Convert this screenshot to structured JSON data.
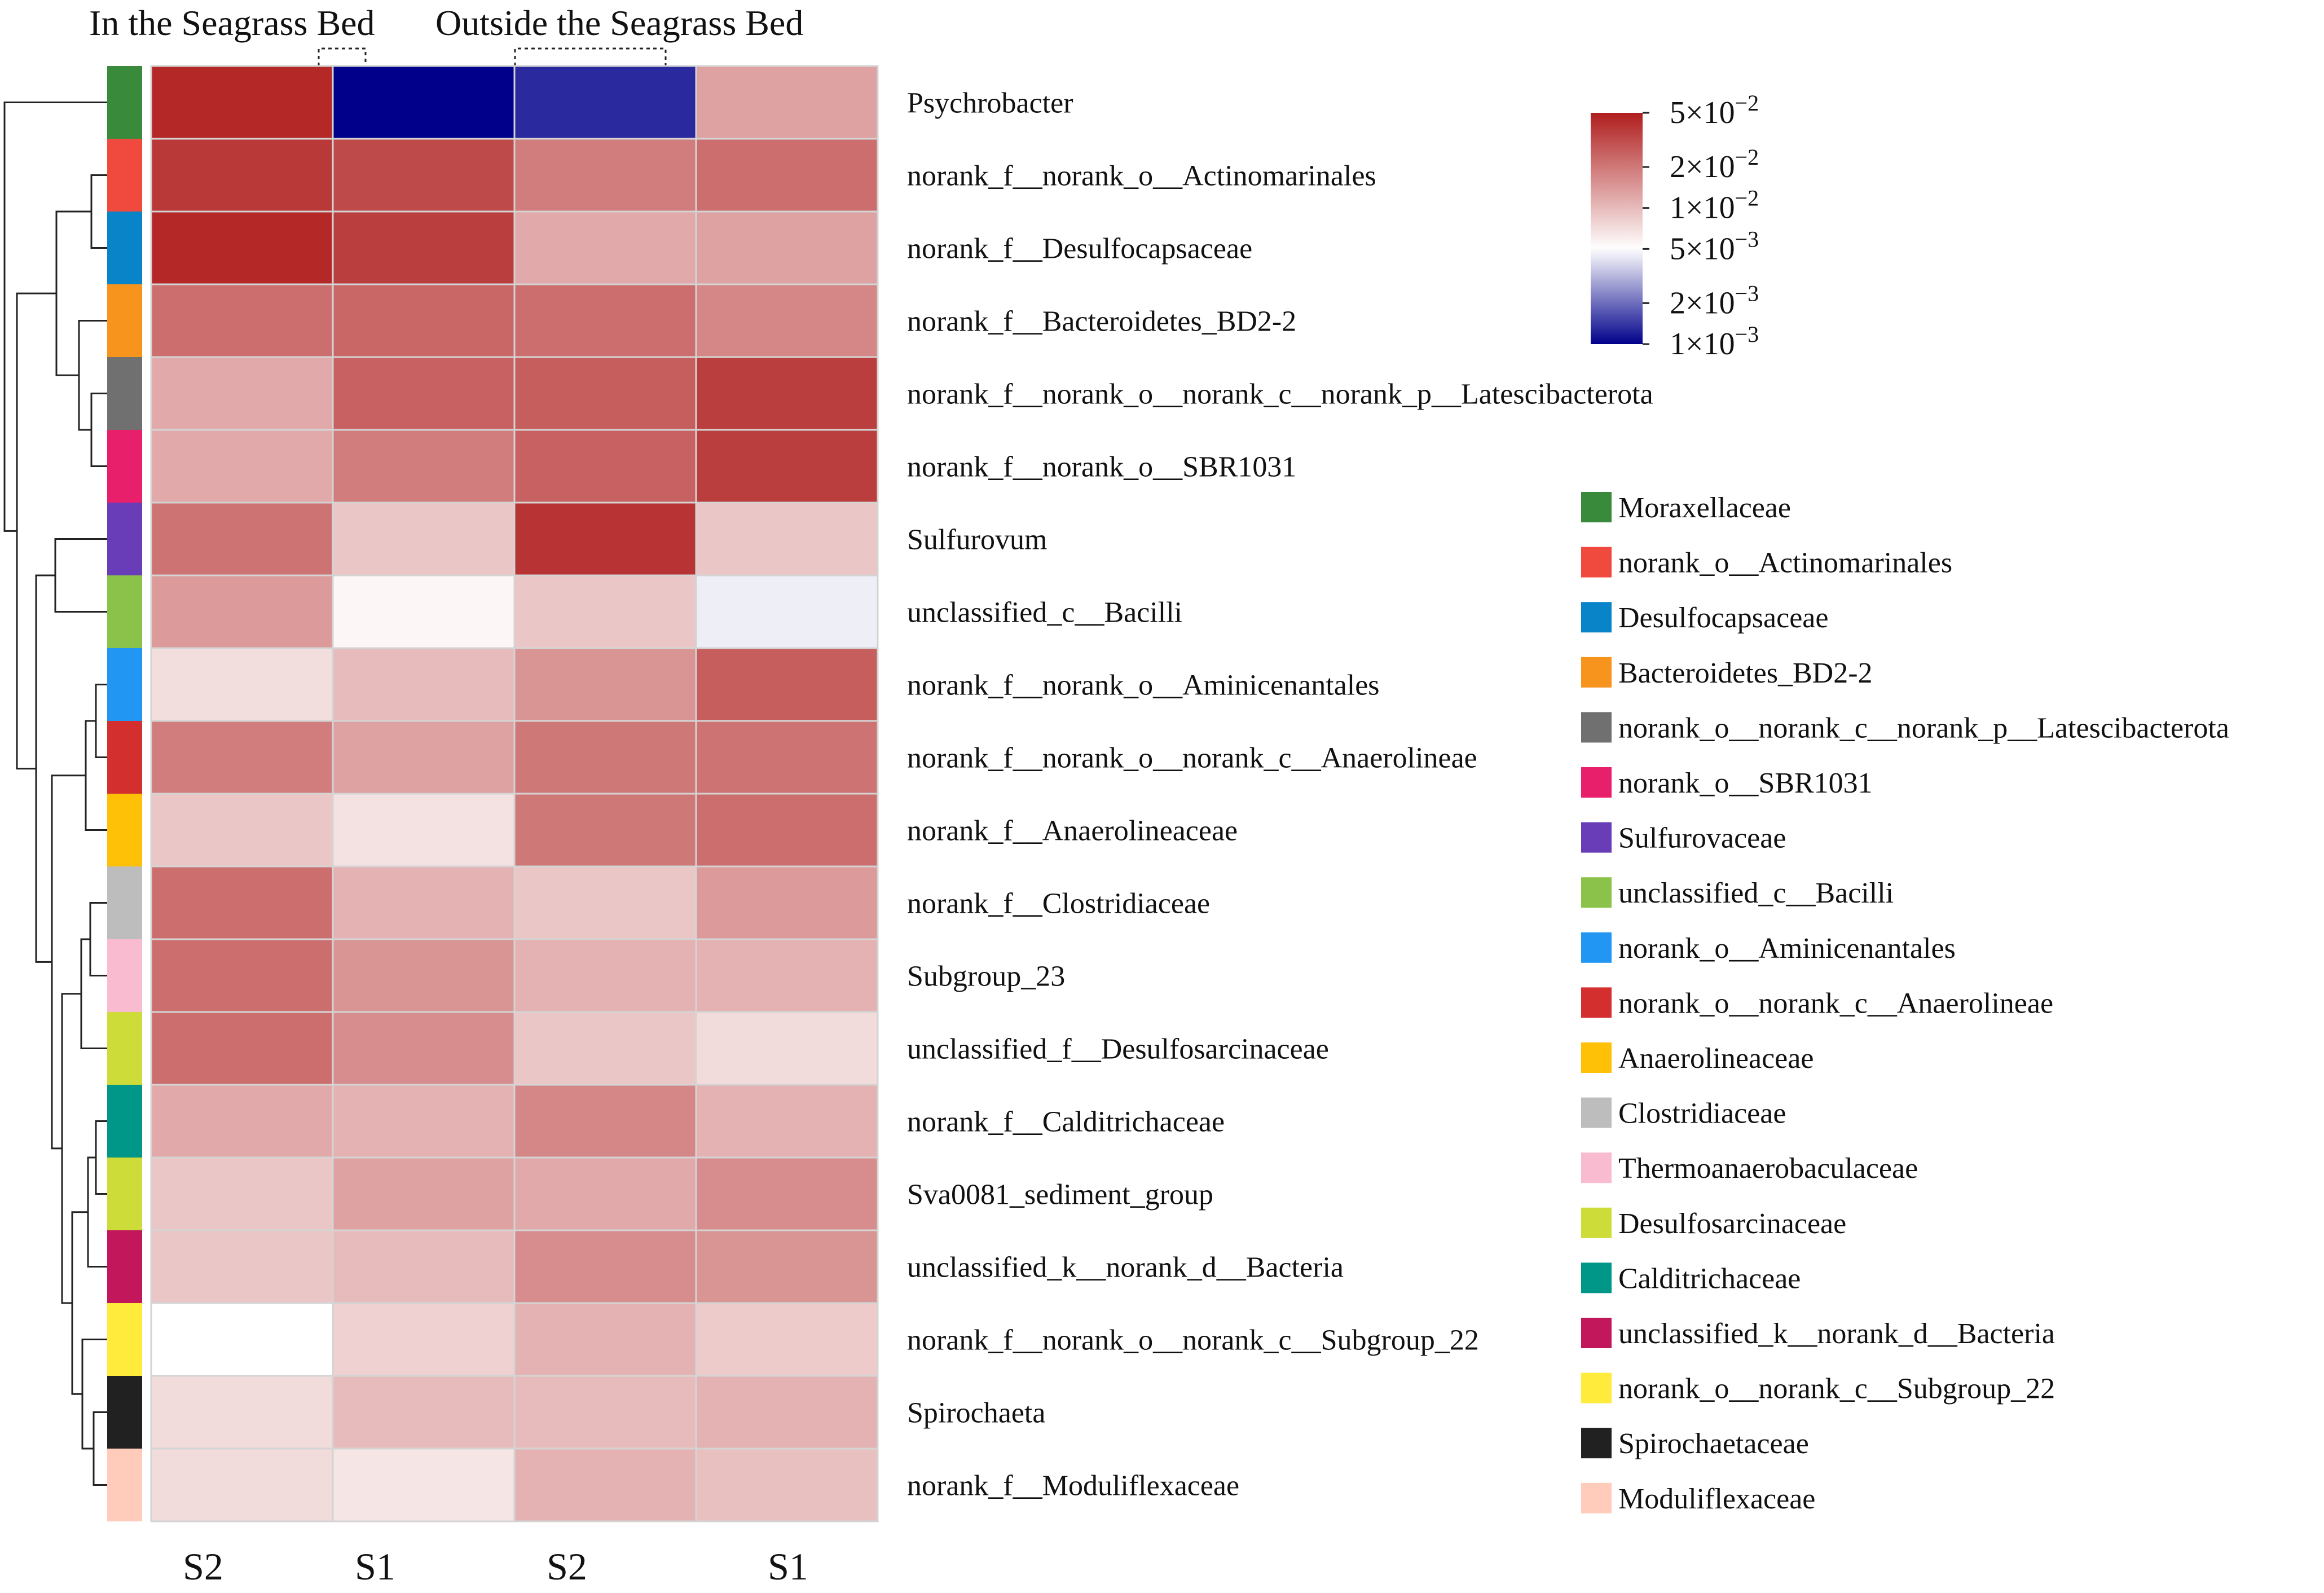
{
  "chart_data": {
    "type": "heatmap",
    "title": "",
    "group_titles": [
      "In the Seagrass Bed",
      "Outside the Seagrass Bed"
    ],
    "columns": [
      {
        "label": "S2",
        "group": "In the Seagrass Bed"
      },
      {
        "label": "S1",
        "group": "In the Seagrass Bed"
      },
      {
        "label": "S2",
        "group": "Outside the Seagrass Bed"
      },
      {
        "label": "S1",
        "group": "Outside the Seagrass Bed"
      }
    ],
    "rows": [
      {
        "label": "Psychrobacter",
        "family": "Moraxellaceae",
        "family_color": "#3a8a3c",
        "values": [
          0.045,
          0.001,
          0.0013,
          0.013
        ]
      },
      {
        "label": "norank_f__norank_o__Actinomarinales",
        "family": "norank_o__Actinomarinales",
        "family_color": "#f04a3e",
        "values": [
          0.038,
          0.032,
          0.019,
          0.022
        ]
      },
      {
        "label": "norank_f__Desulfocapsaceae",
        "family": "Desulfocapsaceae",
        "family_color": "#0a84c8",
        "values": [
          0.045,
          0.036,
          0.012,
          0.013
        ]
      },
      {
        "label": "norank_f__Bacteroidetes_BD2-2",
        "family": "Bacteroidetes_BD2-2",
        "family_color": "#f7941d",
        "values": [
          0.022,
          0.024,
          0.022,
          0.017
        ]
      },
      {
        "label": "norank_f__norank_o__norank_c__norank_p__Latescibacterota",
        "family": "norank_o__norank_c__norank_p__Latescibacterota",
        "family_color": "#707070",
        "values": [
          0.012,
          0.025,
          0.026,
          0.036
        ]
      },
      {
        "label": "norank_f__norank_o__SBR1031",
        "family": "norank_o__SBR1031",
        "family_color": "#e8206c",
        "values": [
          0.012,
          0.019,
          0.025,
          0.036
        ]
      },
      {
        "label": "Sulfurovum",
        "family": "Sulfurovaceae",
        "family_color": "#6a3db8",
        "values": [
          0.021,
          0.009,
          0.04,
          0.009
        ]
      },
      {
        "label": "unclassified_c__Bacilli",
        "family": "unclassified_c__Bacilli",
        "family_color": "#8bc34a",
        "values": [
          0.014,
          0.0055,
          0.009,
          0.0045
        ]
      },
      {
        "label": "norank_f__norank_o__Aminicenantales",
        "family": "norank_o__Aminicenantales",
        "family_color": "#2196f3",
        "values": [
          0.007,
          0.01,
          0.015,
          0.026
        ]
      },
      {
        "label": "norank_f__norank_o__norank_c__Anaerolineae",
        "family": "norank_o__norank_c__Anaerolineae",
        "family_color": "#d32f2f",
        "values": [
          0.019,
          0.013,
          0.02,
          0.021
        ]
      },
      {
        "label": "norank_f__Anaerolineaceae",
        "family": "Anaerolineaceae",
        "family_color": "#ffc107",
        "values": [
          0.009,
          0.0068,
          0.02,
          0.022
        ]
      },
      {
        "label": "norank_f__Clostridiaceae",
        "family": "Clostridiaceae",
        "family_color": "#bdbdbd",
        "values": [
          0.022,
          0.011,
          0.009,
          0.014
        ]
      },
      {
        "label": "Subgroup_23",
        "family": "Thermoanaerobaculaceae",
        "family_color": "#f8bbd0",
        "values": [
          0.022,
          0.015,
          0.011,
          0.011
        ]
      },
      {
        "label": "unclassified_f__Desulfosarcinaceae",
        "family": "Desulfosarcinaceae",
        "family_color": "#cddc39",
        "values": [
          0.022,
          0.016,
          0.009,
          0.0072
        ]
      },
      {
        "label": "norank_f__Calditrichaceae",
        "family": "Calditrichaceae",
        "family_color": "#009688",
        "values": [
          0.012,
          0.011,
          0.017,
          0.011
        ]
      },
      {
        "label": "Sva0081_sediment_group",
        "family": "Desulfosarcinaceae",
        "family_color": "#cddc39",
        "values": [
          0.009,
          0.013,
          0.012,
          0.016
        ]
      },
      {
        "label": "unclassified_k__norank_d__Bacteria",
        "family": "unclassified_k__norank_d__Bacteria",
        "family_color": "#c2185b",
        "values": [
          0.009,
          0.01,
          0.016,
          0.015
        ]
      },
      {
        "label": "norank_f__norank_o__norank_c__Subgroup_22",
        "family": "norank_o__norank_c__Subgroup_22",
        "family_color": "#ffeb3b",
        "values": [
          0.005,
          0.008,
          0.011,
          0.0085
        ]
      },
      {
        "label": "Spirochaeta",
        "family": "Spirochaetaceae",
        "family_color": "#212121",
        "values": [
          0.0072,
          0.01,
          0.01,
          0.011
        ]
      },
      {
        "label": "norank_f__Moduliflexaceae",
        "family": "Moduliflexaceae",
        "family_color": "#ffccbc",
        "values": [
          0.0072,
          0.0065,
          0.011,
          0.0095
        ]
      }
    ],
    "color_scale": {
      "type": "log",
      "min": 0.001,
      "max": 0.05,
      "colors": [
        "#00008b",
        "#ffffff",
        "#b01e1e"
      ],
      "midpoint": 0.005,
      "tick_labels": [
        {
          "value": 0.05,
          "mantissa": "5×10",
          "exponent": "−2"
        },
        {
          "value": 0.02,
          "mantissa": "2×10",
          "exponent": "−2"
        },
        {
          "value": 0.01,
          "mantissa": "1×10",
          "exponent": "−2"
        },
        {
          "value": 0.005,
          "mantissa": "5×10",
          "exponent": "−3"
        },
        {
          "value": 0.002,
          "mantissa": "2×10",
          "exponent": "−3"
        },
        {
          "value": 0.001,
          "mantissa": "1×10",
          "exponent": "−3"
        }
      ]
    },
    "legend": [
      {
        "label": "Moraxellaceae",
        "color": "#3a8a3c"
      },
      {
        "label": "norank_o__Actinomarinales",
        "color": "#f04a3e"
      },
      {
        "label": "Desulfocapsaceae",
        "color": "#0a84c8"
      },
      {
        "label": "Bacteroidetes_BD2-2",
        "color": "#f7941d"
      },
      {
        "label": "norank_o__norank_c__norank_p__Latescibacterota",
        "color": "#707070"
      },
      {
        "label": "norank_o__SBR1031",
        "color": "#e8206c"
      },
      {
        "label": "Sulfurovaceae",
        "color": "#6a3db8"
      },
      {
        "label": "unclassified_c__Bacilli",
        "color": "#8bc34a"
      },
      {
        "label": "norank_o__Aminicenantales",
        "color": "#2196f3"
      },
      {
        "label": "norank_o__norank_c__Anaerolineae",
        "color": "#d32f2f"
      },
      {
        "label": "Anaerolineaceae",
        "color": "#ffc107"
      },
      {
        "label": "Clostridiaceae",
        "color": "#bdbdbd"
      },
      {
        "label": "Thermoanaerobaculaceae",
        "color": "#f8bbd0"
      },
      {
        "label": "Desulfosarcinaceae",
        "color": "#cddc39"
      },
      {
        "label": "Calditrichaceae",
        "color": "#009688"
      },
      {
        "label": "unclassified_k__norank_d__Bacteria",
        "color": "#c2185b"
      },
      {
        "label": "norank_o__norank_c__Subgroup_22",
        "color": "#ffeb3b"
      },
      {
        "label": "Spirochaetaceae",
        "color": "#212121"
      },
      {
        "label": "Moduliflexaceae",
        "color": "#ffccbc"
      }
    ],
    "legend_position": "right",
    "dendrogram": "left"
  }
}
